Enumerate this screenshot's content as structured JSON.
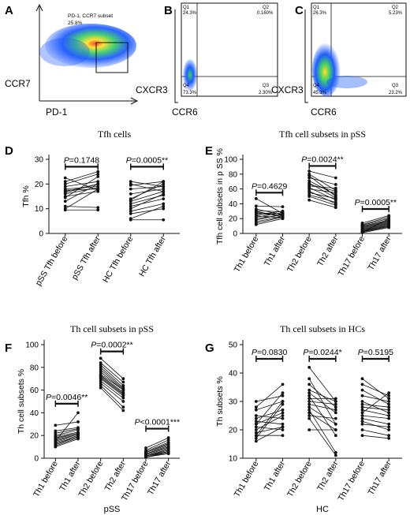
{
  "flow_panels": [
    {
      "letter": "A",
      "x_label": "PD-1",
      "y_label": "CCR7",
      "gate_label": "PD-1, CCR7 subset",
      "gate_value": "25.8%"
    },
    {
      "letter": "B",
      "x_label": "CCR6",
      "y_label": "CXCR3",
      "quadrants": {
        "Q1": "Q1",
        "Q1_value": "24.3%",
        "Q2": "Q2",
        "Q2_value": "0.160%",
        "Q3": "Q3",
        "Q3_value": "2.30%",
        "Q4": "Q4",
        "Q4_value": "73.3%"
      }
    },
    {
      "letter": "C",
      "x_label": "CCR6",
      "y_label": "CXCR3",
      "quadrants": {
        "Q1": "Q1",
        "Q1_value": "26.3%",
        "Q2": "Q2",
        "Q2_value": "5.23%",
        "Q3": "Q3",
        "Q3_value": "23.2%",
        "Q4": "Q4",
        "Q4_value": "45.3%"
      }
    }
  ],
  "chart_data": [
    {
      "panel": "D",
      "type": "scatter",
      "title": "Tfh cells",
      "ylabel": "Tfh %",
      "xlabel": "",
      "ylim": [
        0,
        30
      ],
      "yticks": [
        0,
        10,
        20,
        30
      ],
      "categories": [
        "pSS Tfh before",
        "pSS Tfh after",
        "HC Tfh before",
        "HC Tfh after"
      ],
      "pairs": [
        {
          "before": 0,
          "after": 1,
          "values": [
            [
              22.5,
              17.5
            ],
            [
              21,
              25
            ],
            [
              20,
              24
            ],
            [
              19,
              21
            ],
            [
              18,
              19
            ],
            [
              17.5,
              18
            ],
            [
              17,
              20
            ],
            [
              16.5,
              20
            ],
            [
              16,
              18.5
            ],
            [
              15,
              17
            ],
            [
              14.5,
              23
            ],
            [
              13,
              20
            ],
            [
              11,
              10.5
            ],
            [
              10,
              18
            ],
            [
              9.5,
              9.5
            ]
          ]
        },
        {
          "before": 2,
          "after": 3,
          "values": [
            [
              21,
              19
            ],
            [
              20,
              17
            ],
            [
              19.5,
              21
            ],
            [
              18,
              19
            ],
            [
              16,
              18
            ],
            [
              14,
              20
            ],
            [
              13.5,
              21
            ],
            [
              13,
              17
            ],
            [
              12,
              15.5
            ],
            [
              11,
              14
            ],
            [
              10,
              16
            ],
            [
              9,
              12
            ],
            [
              8,
              10
            ],
            [
              6,
              11
            ],
            [
              5.5,
              5.5
            ]
          ]
        }
      ],
      "comparisons": [
        {
          "from": 0,
          "to": 1,
          "y": 27,
          "label": "P=0.1748"
        },
        {
          "from": 2,
          "to": 3,
          "y": 27,
          "label": "P=0.0005**"
        }
      ]
    },
    {
      "panel": "E",
      "type": "scatter",
      "title": "Tfh cell subsets in pSS",
      "ylabel": "Tfh cell subsets in p SS %",
      "xlabel": "",
      "ylim": [
        0,
        100
      ],
      "yticks": [
        0,
        20,
        40,
        60,
        80,
        100
      ],
      "categories": [
        "Th1 before",
        "Th1 after",
        "Th2 before",
        "Th2 after",
        "Th17 before",
        "Th17 after"
      ],
      "pairs": [
        {
          "before": 0,
          "after": 1,
          "values": [
            [
              47,
              27
            ],
            [
              37,
              36
            ],
            [
              33,
              25
            ],
            [
              31,
              29
            ],
            [
              30,
              22
            ],
            [
              28,
              26
            ],
            [
              27,
              24
            ],
            [
              25,
              30
            ],
            [
              24,
              21
            ],
            [
              22,
              28
            ],
            [
              20,
              25
            ],
            [
              18,
              26
            ],
            [
              16,
              23
            ],
            [
              14,
              22
            ],
            [
              12,
              20
            ]
          ]
        },
        {
          "before": 2,
          "after": 3,
          "values": [
            [
              84,
              75
            ],
            [
              80,
              58
            ],
            [
              78,
              50
            ],
            [
              75,
              66
            ],
            [
              71,
              52
            ],
            [
              68,
              48
            ],
            [
              66,
              57
            ],
            [
              64,
              61
            ],
            [
              62,
              45
            ],
            [
              60,
              55
            ],
            [
              57,
              40
            ],
            [
              55,
              47
            ],
            [
              52,
              42
            ],
            [
              50,
              38
            ],
            [
              45,
              35
            ]
          ]
        },
        {
          "before": 4,
          "after": 5,
          "values": [
            [
              14,
              24
            ],
            [
              12,
              22
            ],
            [
              11,
              20
            ],
            [
              10,
              18
            ],
            [
              9,
              17
            ],
            [
              8,
              16
            ],
            [
              7,
              15
            ],
            [
              6,
              14
            ],
            [
              5,
              13
            ],
            [
              4,
              12
            ],
            [
              3,
              11
            ],
            [
              2.5,
              10
            ],
            [
              2,
              9
            ],
            [
              1.5,
              20
            ],
            [
              1,
              8
            ]
          ]
        }
      ],
      "comparisons": [
        {
          "from": 0,
          "to": 1,
          "y": 55,
          "label": "P=0.4629"
        },
        {
          "from": 2,
          "to": 3,
          "y": 91,
          "label": "P=0.0024**"
        },
        {
          "from": 4,
          "to": 5,
          "y": 33,
          "label": "P=0.0005**"
        }
      ]
    },
    {
      "panel": "F",
      "type": "scatter",
      "title": "Th cell subsets in pSS",
      "ylabel": "Th cell subsets %",
      "xlabel": "pSS",
      "ylim": [
        0,
        100
      ],
      "yticks": [
        0,
        20,
        40,
        60,
        80,
        100
      ],
      "categories": [
        "Th1 before",
        "Th1 after",
        "Th2 before",
        "Th2 after",
        "Th17 before",
        "Th17 after"
      ],
      "pairs": [
        {
          "before": 0,
          "after": 1,
          "values": [
            [
              29,
              32
            ],
            [
              24,
              27
            ],
            [
              22,
              26
            ],
            [
              20,
              25
            ],
            [
              19,
              23
            ],
            [
              18,
              22
            ],
            [
              17,
              22
            ],
            [
              16,
              21
            ],
            [
              15,
              21
            ],
            [
              14,
              20
            ],
            [
              13,
              19
            ],
            [
              12,
              19
            ],
            [
              11,
              18
            ],
            [
              10,
              17
            ],
            [
              15,
              40
            ]
          ]
        },
        {
          "before": 2,
          "after": 3,
          "values": [
            [
              88,
              70
            ],
            [
              84,
              67
            ],
            [
              82,
              64
            ],
            [
              80,
              62
            ],
            [
              78,
              61
            ],
            [
              76,
              60
            ],
            [
              74,
              60
            ],
            [
              73,
              58
            ],
            [
              72,
              57
            ],
            [
              71,
              56
            ],
            [
              70,
              55
            ],
            [
              68,
              53
            ],
            [
              66,
              50
            ],
            [
              64,
              45
            ],
            [
              62,
              42
            ]
          ]
        },
        {
          "before": 4,
          "after": 5,
          "values": [
            [
              9,
              18
            ],
            [
              7,
              16
            ],
            [
              6,
              14
            ],
            [
              5,
              13
            ],
            [
              5,
              12
            ],
            [
              4,
              11
            ],
            [
              4,
              10
            ],
            [
              3,
              9
            ],
            [
              3,
              9
            ],
            [
              2,
              8
            ],
            [
              2,
              7
            ],
            [
              2,
              6
            ],
            [
              1,
              6
            ],
            [
              1,
              5
            ],
            [
              1,
              4
            ]
          ]
        }
      ],
      "comparisons": [
        {
          "from": 0,
          "to": 1,
          "y": 48,
          "label": "P=0.0046**"
        },
        {
          "from": 2,
          "to": 3,
          "y": 94,
          "label": "P=0.0002**"
        },
        {
          "from": 4,
          "to": 5,
          "y": 26,
          "label": "P<0.0001***"
        }
      ]
    },
    {
      "panel": "G",
      "type": "scatter",
      "title": "Th cell subsets in HCs",
      "ylabel": "Th subsets %",
      "xlabel": "HC",
      "ylim": [
        10,
        50
      ],
      "yticks": [
        10,
        20,
        30,
        40,
        50
      ],
      "categories": [
        "Th1 before",
        "Th1 after",
        "Th2 before",
        "Th2 after",
        "Th17 before",
        "Th17 after"
      ],
      "pairs": [
        {
          "before": 0,
          "after": 1,
          "values": [
            [
              30,
              32
            ],
            [
              28,
              36
            ],
            [
              27,
              30
            ],
            [
              25,
              24
            ],
            [
              24,
              27
            ],
            [
              23,
              22
            ],
            [
              22,
              26
            ],
            [
              22,
              33
            ],
            [
              21,
              20
            ],
            [
              20,
              25
            ],
            [
              19,
              21
            ],
            [
              18,
              18
            ],
            [
              18,
              30
            ],
            [
              17,
              29
            ],
            [
              16,
              21
            ]
          ]
        },
        {
          "before": 2,
          "after": 3,
          "values": [
            [
              42,
              30
            ],
            [
              38,
              22
            ],
            [
              36,
              28
            ],
            [
              34,
              30
            ],
            [
              33,
              26
            ],
            [
              32,
              18
            ],
            [
              31,
              31
            ],
            [
              30,
              29
            ],
            [
              29,
              27
            ],
            [
              28,
              22
            ],
            [
              27,
              12
            ],
            [
              26,
              20
            ],
            [
              25,
              24
            ],
            [
              24,
              11
            ],
            [
              20,
              20
            ]
          ]
        },
        {
          "before": 4,
          "after": 5,
          "values": [
            [
              38,
              31
            ],
            [
              36,
              32
            ],
            [
              34,
              29
            ],
            [
              32,
              30
            ],
            [
              30,
              26
            ],
            [
              29,
              28
            ],
            [
              28,
              27
            ],
            [
              27,
              25
            ],
            [
              26,
              33
            ],
            [
              25,
              24
            ],
            [
              24,
              22
            ],
            [
              23,
              20
            ],
            [
              22,
              21
            ],
            [
              20,
              18
            ],
            [
              18,
              17
            ]
          ]
        }
      ],
      "comparisons": [
        {
          "from": 0,
          "to": 1,
          "y": 45,
          "label": "P=0.0830"
        },
        {
          "from": 2,
          "to": 3,
          "y": 45,
          "label": "P=0.0244*"
        },
        {
          "from": 4,
          "to": 5,
          "y": 45,
          "label": "P=0.5195"
        }
      ]
    }
  ]
}
